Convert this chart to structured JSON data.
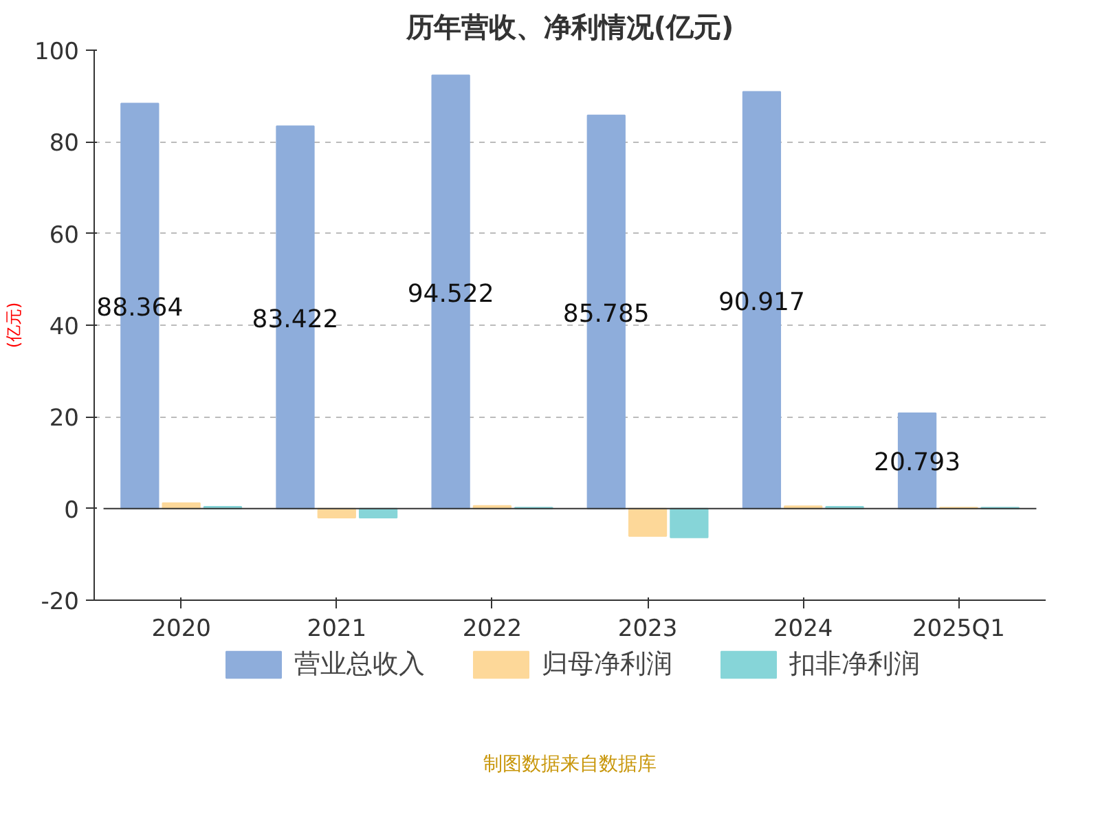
{
  "chart_data": {
    "type": "bar",
    "title": "历年营收、净利情况(亿元)",
    "ylabel": "(亿元)",
    "categories": [
      "2020",
      "2021",
      "2022",
      "2023",
      "2024",
      "2025Q1"
    ],
    "series": [
      {
        "name": "营业总收入",
        "color": "#8eaddb",
        "values": [
          88.364,
          83.422,
          94.522,
          85.785,
          90.917,
          20.793
        ],
        "value_labels": [
          "88.364",
          "83.422",
          "94.522",
          "85.785",
          "90.917",
          "20.793"
        ]
      },
      {
        "name": "归母净利润",
        "color": "#fdd899",
        "values": [
          1.2,
          -2,
          0.6,
          -6,
          0.5,
          0.2
        ]
      },
      {
        "name": "扣非净利润",
        "color": "#86d5d8",
        "values": [
          0.4,
          -2,
          0.2,
          -6.3,
          0.4,
          0.2
        ]
      }
    ],
    "ylim": [
      -20,
      100
    ],
    "yticks": [
      -20,
      0,
      20,
      40,
      60,
      80,
      100
    ],
    "grid": "y",
    "legend": "bottom",
    "annotations": [
      "制图数据来自数据库"
    ]
  }
}
